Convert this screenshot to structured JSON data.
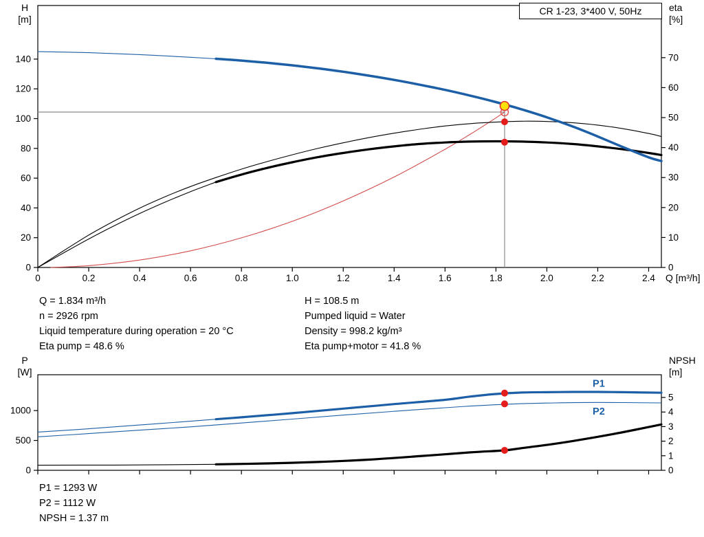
{
  "title": "CR 1-23, 3*400 V, 50Hz",
  "top_info": {
    "left": [
      "Q = 1.834 m³/h",
      "n = 2926 rpm",
      "Liquid temperature during operation = 20 °C",
      "Eta pump = 48.6 %"
    ],
    "right": [
      "H = 108.5 m",
      "Pumped liquid = Water",
      "Density = 998.2 kg/m³",
      "Eta pump+motor = 41.8 %"
    ]
  },
  "bottom_info": [
    "P1 = 1293 W",
    "P2 = 1112 W",
    "NPSH = 1.37 m"
  ],
  "colors": {
    "curve_blue": "#1d5fa7",
    "curve_black": "#000000",
    "system_curve_red": "#d24a4a",
    "marker_red": "#e51c1c",
    "marker_yellow": "#ffe10a",
    "crosshair_gray": "#8a8a8a"
  },
  "chart_data": [
    {
      "type": "line",
      "title": "CR 1-23, 3*400 V, 50Hz",
      "x_axis": {
        "label": "Q [m³/h]",
        "min": 0,
        "max": 2.45,
        "ticks": [
          0,
          0.2,
          0.4,
          0.6,
          0.8,
          1,
          1.2,
          1.4,
          1.6,
          1.8,
          2,
          2.2,
          2.4
        ],
        "tick_labels": [
          "0",
          "0.2",
          "0.4",
          "0.6",
          "0.8",
          "1.0",
          "1.2",
          "1.4",
          "1.6",
          "1.8",
          "2.0",
          "2.2",
          "2.4"
        ]
      },
      "y_left": {
        "label": [
          "H",
          "[m]"
        ],
        "min": 0,
        "max": 176,
        "ticks": [
          0,
          20,
          40,
          60,
          80,
          100,
          120,
          140
        ],
        "tick_labels": [
          "0",
          "20",
          "40",
          "60",
          "80",
          "100",
          "120",
          "140"
        ]
      },
      "y_right": {
        "label": [
          "eta",
          "[%]"
        ],
        "min": 0,
        "max": 87.4,
        "ticks": [
          0,
          10,
          20,
          30,
          40,
          50,
          60,
          70
        ],
        "tick_labels": [
          "0",
          "10",
          "20",
          "30",
          "40",
          "50",
          "60",
          "70"
        ]
      },
      "crosshair": {
        "x": 1.834,
        "y": 104.4,
        "v_top": 110
      },
      "series": [
        {
          "name": "system-curve",
          "color": "#d24a4a",
          "axis": "left",
          "width": 1.1,
          "points": [
            [
              0.05,
              0
            ],
            [
              0.2,
              1.2
            ],
            [
              0.4,
              5
            ],
            [
              0.6,
              11.2
            ],
            [
              0.8,
              19.9
            ],
            [
              1.0,
              31
            ],
            [
              1.2,
              44.7
            ],
            [
              1.4,
              60.8
            ],
            [
              1.6,
              79.4
            ],
            [
              1.7,
              89.6
            ],
            [
              1.8,
              100.5
            ],
            [
              1.834,
              104.4
            ]
          ]
        },
        {
          "name": "eta-pump",
          "color": "#000000",
          "axis": "right",
          "width": 1.1,
          "points": [
            [
              0,
              0
            ],
            [
              0.1,
              5.5
            ],
            [
              0.2,
              10.8
            ],
            [
              0.3,
              15.5
            ],
            [
              0.4,
              19.8
            ],
            [
              0.5,
              23.6
            ],
            [
              0.6,
              27
            ],
            [
              0.7,
              30
            ],
            [
              0.8,
              32.8
            ],
            [
              0.9,
              35.3
            ],
            [
              1.0,
              37.6
            ],
            [
              1.1,
              39.7
            ],
            [
              1.2,
              41.6
            ],
            [
              1.3,
              43.3
            ],
            [
              1.4,
              44.8
            ],
            [
              1.5,
              46.1
            ],
            [
              1.6,
              47.2
            ],
            [
              1.7,
              48
            ],
            [
              1.8,
              48.5
            ],
            [
              1.9,
              48.8
            ],
            [
              2.0,
              48.7
            ],
            [
              2.1,
              48.3
            ],
            [
              2.2,
              47.5
            ],
            [
              2.3,
              46.3
            ],
            [
              2.4,
              44.7
            ],
            [
              2.45,
              43.7
            ]
          ]
        },
        {
          "name": "eta-pump-motor",
          "color": "#000000",
          "axis": "right",
          "width": 1.1,
          "bold_from": 0.7,
          "bold_width": 3.2,
          "points": [
            [
              0,
              0
            ],
            [
              0.1,
              4.8
            ],
            [
              0.2,
              9.5
            ],
            [
              0.3,
              13.9
            ],
            [
              0.4,
              18
            ],
            [
              0.5,
              21.8
            ],
            [
              0.6,
              25.3
            ],
            [
              0.7,
              28.5
            ],
            [
              0.8,
              31
            ],
            [
              0.9,
              33.2
            ],
            [
              1.0,
              35.1
            ],
            [
              1.1,
              36.8
            ],
            [
              1.2,
              38.2
            ],
            [
              1.3,
              39.4
            ],
            [
              1.4,
              40.4
            ],
            [
              1.5,
              41.2
            ],
            [
              1.6,
              41.7
            ],
            [
              1.7,
              42
            ],
            [
              1.8,
              42.1
            ],
            [
              1.9,
              42
            ],
            [
              2.0,
              41.7
            ],
            [
              2.1,
              41.2
            ],
            [
              2.2,
              40.4
            ],
            [
              2.3,
              39.4
            ],
            [
              2.4,
              38.2
            ],
            [
              2.45,
              37.5
            ]
          ]
        },
        {
          "name": "head",
          "color": "#1d5fa7",
          "axis": "left",
          "width": 1.1,
          "bold_from": 0.7,
          "bold_width": 3.5,
          "points": [
            [
              0,
              145
            ],
            [
              0.2,
              144.3
            ],
            [
              0.4,
              143
            ],
            [
              0.6,
              141.2
            ],
            [
              0.7,
              140.2
            ],
            [
              0.8,
              139
            ],
            [
              0.9,
              137.5
            ],
            [
              1.0,
              135.8
            ],
            [
              1.1,
              133.8
            ],
            [
              1.2,
              131.5
            ],
            [
              1.3,
              128.9
            ],
            [
              1.4,
              126
            ],
            [
              1.5,
              122.8
            ],
            [
              1.6,
              119.3
            ],
            [
              1.7,
              115.4
            ],
            [
              1.8,
              111.1
            ],
            [
              1.9,
              106.3
            ],
            [
              2.0,
              100.9
            ],
            [
              2.1,
              94.8
            ],
            [
              2.2,
              88
            ],
            [
              2.3,
              80.8
            ],
            [
              2.4,
              74
            ],
            [
              2.45,
              71.5
            ]
          ]
        }
      ],
      "markers": [
        {
          "name": "duty-point-target",
          "x": 1.834,
          "y": 104.4,
          "axis": "left",
          "r": 5.5,
          "fill": "none",
          "stroke": "#e05050",
          "sw": 1.4
        },
        {
          "name": "operating-point-head",
          "x": 1.834,
          "y": 108.5,
          "axis": "left",
          "r": 6.5,
          "fill": "#ffe10a",
          "stroke": "#e03030",
          "sw": 1.6
        },
        {
          "name": "operating-point-eta-pump",
          "x": 1.834,
          "y": 48.6,
          "axis": "right",
          "r": 5,
          "fill": "#e51c1c"
        },
        {
          "name": "operating-point-eta-pump-motor",
          "x": 1.834,
          "y": 41.8,
          "axis": "right",
          "r": 5,
          "fill": "#e51c1c"
        }
      ]
    },
    {
      "type": "line",
      "x_axis": {
        "min": 0,
        "max": 2.45,
        "ticks": [
          0,
          0.2,
          0.4,
          0.6,
          0.8,
          1,
          1.2,
          1.4,
          1.6,
          1.8,
          2,
          2.2,
          2.4
        ]
      },
      "y_left": {
        "label": [
          "P",
          "[W]"
        ],
        "min": 0,
        "max": 1600,
        "ticks": [
          0,
          500,
          1000
        ],
        "tick_labels": [
          "0",
          "500",
          "1000"
        ]
      },
      "y_right": {
        "label": [
          "NPSH",
          "[m]"
        ],
        "min": 0,
        "max": 6.56,
        "ticks": [
          0,
          1,
          2,
          3,
          4,
          5
        ],
        "tick_labels": [
          "0",
          "1",
          "2",
          "3",
          "4",
          "5"
        ]
      },
      "series": [
        {
          "name": "p2",
          "color": "#1d5fa7",
          "axis": "left",
          "width": 1.1,
          "label": {
            "text": "P2",
            "x": 2.18,
            "y": 930
          },
          "points": [
            [
              0,
              560
            ],
            [
              0.2,
              615
            ],
            [
              0.4,
              672
            ],
            [
              0.6,
              728
            ],
            [
              0.8,
              792
            ],
            [
              1.0,
              858
            ],
            [
              1.2,
              924
            ],
            [
              1.4,
              988
            ],
            [
              1.6,
              1048
            ],
            [
              1.7,
              1075
            ],
            [
              1.8,
              1098
            ],
            [
              1.9,
              1115
            ],
            [
              2.0,
              1126
            ],
            [
              2.2,
              1136
            ],
            [
              2.45,
              1128
            ]
          ]
        },
        {
          "name": "p1",
          "color": "#1d5fa7",
          "axis": "left",
          "width": 1.1,
          "bold_from": 0.7,
          "bold_width": 3.2,
          "label": {
            "text": "P1",
            "x": 2.18,
            "y": 1400
          },
          "points": [
            [
              0,
              640
            ],
            [
              0.2,
              695
            ],
            [
              0.4,
              758
            ],
            [
              0.6,
              822
            ],
            [
              0.7,
              855
            ],
            [
              0.8,
              888
            ],
            [
              0.9,
              922
            ],
            [
              1.0,
              957
            ],
            [
              1.2,
              1032
            ],
            [
              1.4,
              1108
            ],
            [
              1.6,
              1180
            ],
            [
              1.7,
              1235
            ],
            [
              1.8,
              1278
            ],
            [
              1.9,
              1302
            ],
            [
              2.0,
              1308
            ],
            [
              2.1,
              1312
            ],
            [
              2.2,
              1312
            ],
            [
              2.3,
              1308
            ],
            [
              2.45,
              1298
            ]
          ]
        },
        {
          "name": "npsh",
          "color": "#000000",
          "axis": "right",
          "width": 1.1,
          "bold_from": 0.7,
          "bold_width": 3.2,
          "points": [
            [
              0,
              0.35
            ],
            [
              0.3,
              0.36
            ],
            [
              0.5,
              0.38
            ],
            [
              0.7,
              0.41
            ],
            [
              0.9,
              0.47
            ],
            [
              1.1,
              0.57
            ],
            [
              1.3,
              0.73
            ],
            [
              1.5,
              0.97
            ],
            [
              1.7,
              1.23
            ],
            [
              1.834,
              1.37
            ],
            [
              1.9,
              1.52
            ],
            [
              2.0,
              1.74
            ],
            [
              2.1,
              2.0
            ],
            [
              2.2,
              2.3
            ],
            [
              2.3,
              2.62
            ],
            [
              2.4,
              2.97
            ],
            [
              2.45,
              3.15
            ]
          ]
        }
      ],
      "markers": [
        {
          "name": "operating-point-p1",
          "x": 1.834,
          "y": 1293,
          "axis": "left",
          "r": 5,
          "fill": "#e51c1c"
        },
        {
          "name": "operating-point-p2",
          "x": 1.834,
          "y": 1112,
          "axis": "left",
          "r": 5,
          "fill": "#e51c1c"
        },
        {
          "name": "operating-point-npsh",
          "x": 1.834,
          "y": 1.37,
          "axis": "right",
          "r": 5,
          "fill": "#e51c1c"
        }
      ]
    }
  ]
}
